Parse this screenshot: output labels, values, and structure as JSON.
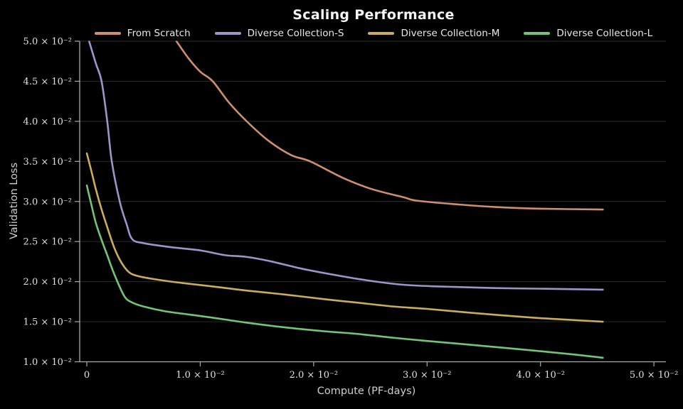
{
  "title": "Scaling Performance",
  "colors": {
    "background": "#000000",
    "title_text": "#f5f5f5",
    "axis_label_text": "#cfcfcf",
    "tick_label_text": "#e0e0e0",
    "spine": "#aaaaaa",
    "grid": "rgba(255,255,255,0.18)"
  },
  "chart_data": {
    "type": "line",
    "title": "Scaling Performance",
    "xlabel": "Compute (PF-days)",
    "ylabel": "Validation Loss",
    "xlim": [
      -0.00063,
      0.05106
    ],
    "ylim": [
      0.01,
      0.05
    ],
    "grid": "horizontal-only",
    "legend_position": "top-center-row",
    "x_ticks": {
      "values": [
        0,
        0.01,
        0.02,
        0.03,
        0.04,
        0.05
      ],
      "labels": [
        "0",
        "1.0 × 10⁻²",
        "2.0 × 10⁻²",
        "3.0 × 10⁻²",
        "4.0 × 10⁻²",
        "5.0 × 10⁻²"
      ]
    },
    "y_ticks": {
      "values": [
        0.01,
        0.015,
        0.02,
        0.025,
        0.03,
        0.035,
        0.04,
        0.045,
        0.05
      ],
      "labels": [
        "1.0 × 10⁻²",
        "1.5 × 10⁻²",
        "2.0 × 10⁻²",
        "2.5 × 10⁻²",
        "3.0 × 10⁻²",
        "3.5 × 10⁻²",
        "4.0 × 10⁻²",
        "4.5 × 10⁻²",
        "5.0 × 10⁻²"
      ]
    },
    "series": [
      {
        "name": "From Scratch",
        "color": "#cd8f6e",
        "x": [
          0.0079,
          0.009,
          0.01,
          0.0111,
          0.0125,
          0.0141,
          0.016,
          0.018,
          0.0197,
          0.0225,
          0.025,
          0.028,
          0.0291,
          0.033,
          0.0362,
          0.04,
          0.0455
        ],
        "y": [
          0.05,
          0.0478,
          0.0462,
          0.045,
          0.0424,
          0.04,
          0.0376,
          0.0358,
          0.035,
          0.033,
          0.0316,
          0.0305,
          0.0301,
          0.0296,
          0.0293,
          0.0291,
          0.029
        ]
      },
      {
        "name": "Diverse Collection-S",
        "color": "#9b96c8",
        "x": [
          0.0002,
          0.0008,
          0.0013,
          0.0018,
          0.0022,
          0.0029,
          0.0035,
          0.004,
          0.005,
          0.0074,
          0.01,
          0.0122,
          0.014,
          0.016,
          0.019,
          0.022,
          0.025,
          0.028,
          0.031,
          0.036,
          0.041,
          0.0455
        ],
        "y": [
          0.05,
          0.0472,
          0.045,
          0.04,
          0.035,
          0.03,
          0.0272,
          0.0253,
          0.0248,
          0.0243,
          0.0239,
          0.0233,
          0.0231,
          0.0226,
          0.0216,
          0.0208,
          0.0201,
          0.0196,
          0.0194,
          0.0192,
          0.0191,
          0.019
        ]
      },
      {
        "name": "Diverse Collection-M",
        "color": "#c9ad5c",
        "x": [
          0,
          0.0004,
          0.0008,
          0.0013,
          0.0018,
          0.0024,
          0.003,
          0.0037,
          0.0045,
          0.006,
          0.008,
          0.0111,
          0.014,
          0.0174,
          0.021,
          0.0237,
          0.027,
          0.03,
          0.034,
          0.0394,
          0.043,
          0.0455
        ],
        "y": [
          0.036,
          0.0338,
          0.0315,
          0.029,
          0.0268,
          0.0243,
          0.0225,
          0.0212,
          0.0207,
          0.0203,
          0.0199,
          0.0194,
          0.0189,
          0.0184,
          0.0178,
          0.0174,
          0.0169,
          0.0166,
          0.0161,
          0.0155,
          0.0152,
          0.015
        ]
      },
      {
        "name": "Diverse Collection-L",
        "color": "#72c478",
        "x": [
          0,
          0.0004,
          0.0008,
          0.0013,
          0.0018,
          0.0024,
          0.0033,
          0.004,
          0.005,
          0.0069,
          0.009,
          0.0111,
          0.014,
          0.0174,
          0.021,
          0.0237,
          0.027,
          0.03,
          0.034,
          0.0394,
          0.043,
          0.0455
        ],
        "y": [
          0.032,
          0.0296,
          0.0273,
          0.0252,
          0.0233,
          0.021,
          0.0182,
          0.0174,
          0.0169,
          0.0163,
          0.0159,
          0.0155,
          0.0149,
          0.0143,
          0.0138,
          0.0135,
          0.013,
          0.0126,
          0.0121,
          0.0114,
          0.0109,
          0.0105
        ]
      }
    ]
  }
}
